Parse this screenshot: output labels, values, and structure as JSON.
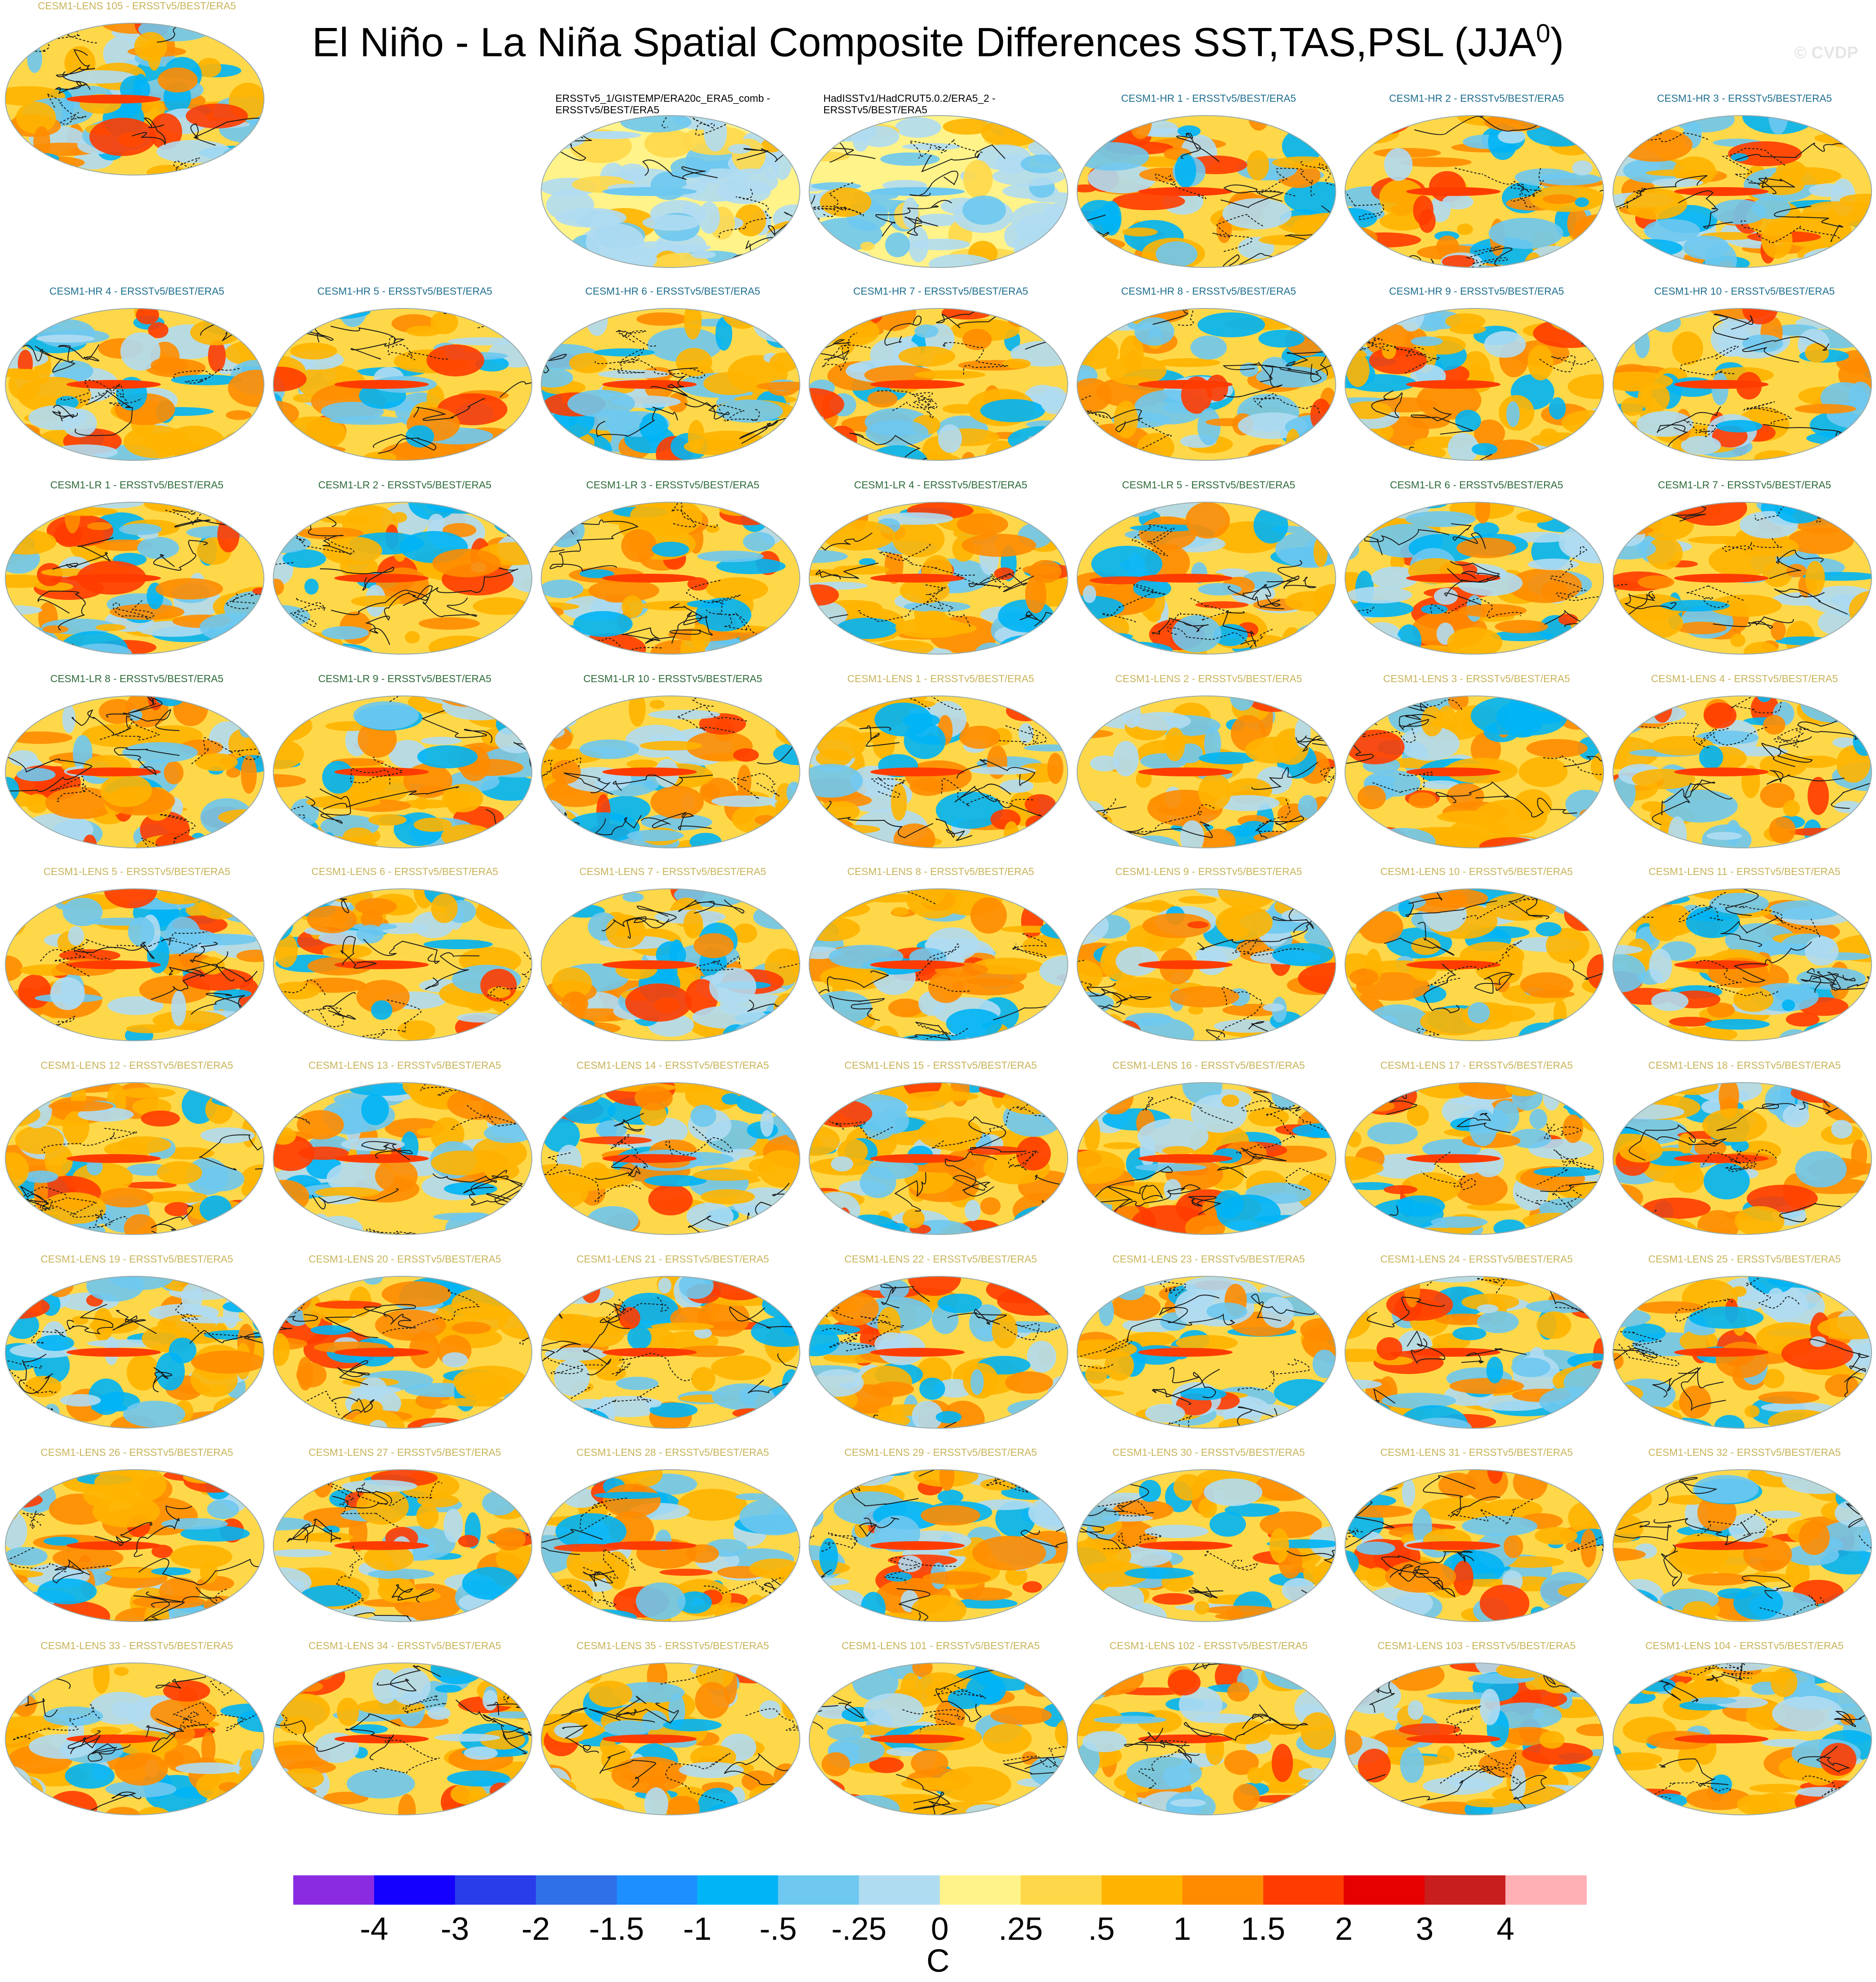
{
  "title": "El Niño - La Niña Spatial Composite Differences SST,TAS,PSL (JJA",
  "title_superscript": "0",
  "title_close": ")",
  "watermark": "© CVDP",
  "panels": [
    {
      "label": "ERSSTv5_1/GISTEMP/ERA20c_ERA5_comb - ERSSTv5/BEST/ERA5",
      "group": "obs"
    },
    {
      "label": "HadISSTv1/HadCRUT5.0.2/ERA5_2 - ERSSTv5/BEST/ERA5",
      "group": "obs"
    },
    {
      "label": "CESM1-HR 1 - ERSSTv5/BEST/ERA5",
      "group": "hr"
    },
    {
      "label": "CESM1-HR 2 - ERSSTv5/BEST/ERA5",
      "group": "hr"
    },
    {
      "label": "CESM1-HR 3 - ERSSTv5/BEST/ERA5",
      "group": "hr"
    },
    {
      "label": "CESM1-HR 4 - ERSSTv5/BEST/ERA5",
      "group": "hr"
    },
    {
      "label": "CESM1-HR 5 - ERSSTv5/BEST/ERA5",
      "group": "hr"
    },
    {
      "label": "CESM1-HR 6 - ERSSTv5/BEST/ERA5",
      "group": "hr"
    },
    {
      "label": "CESM1-HR 7 - ERSSTv5/BEST/ERA5",
      "group": "hr"
    },
    {
      "label": "CESM1-HR 8 - ERSSTv5/BEST/ERA5",
      "group": "hr"
    },
    {
      "label": "CESM1-HR 9 - ERSSTv5/BEST/ERA5",
      "group": "hr"
    },
    {
      "label": "CESM1-HR 10 - ERSSTv5/BEST/ERA5",
      "group": "hr"
    },
    {
      "label": "CESM1-LR 1 - ERSSTv5/BEST/ERA5",
      "group": "lr"
    },
    {
      "label": "CESM1-LR 2 - ERSSTv5/BEST/ERA5",
      "group": "lr"
    },
    {
      "label": "CESM1-LR 3 - ERSSTv5/BEST/ERA5",
      "group": "lr"
    },
    {
      "label": "CESM1-LR 4 - ERSSTv5/BEST/ERA5",
      "group": "lr"
    },
    {
      "label": "CESM1-LR 5 - ERSSTv5/BEST/ERA5",
      "group": "lr"
    },
    {
      "label": "CESM1-LR 6 - ERSSTv5/BEST/ERA5",
      "group": "lr"
    },
    {
      "label": "CESM1-LR 7 - ERSSTv5/BEST/ERA5",
      "group": "lr"
    },
    {
      "label": "CESM1-LR 8 - ERSSTv5/BEST/ERA5",
      "group": "lr"
    },
    {
      "label": "CESM1-LR 9 - ERSSTv5/BEST/ERA5",
      "group": "lr"
    },
    {
      "label": "CESM1-LR 10 - ERSSTv5/BEST/ERA5",
      "group": "lr"
    },
    {
      "label": "CESM1-LENS 1 - ERSSTv5/BEST/ERA5",
      "group": "lens"
    },
    {
      "label": "CESM1-LENS 2 - ERSSTv5/BEST/ERA5",
      "group": "lens"
    },
    {
      "label": "CESM1-LENS 3 - ERSSTv5/BEST/ERA5",
      "group": "lens"
    },
    {
      "label": "CESM1-LENS 4 - ERSSTv5/BEST/ERA5",
      "group": "lens"
    },
    {
      "label": "CESM1-LENS 5 - ERSSTv5/BEST/ERA5",
      "group": "lens"
    },
    {
      "label": "CESM1-LENS 6 - ERSSTv5/BEST/ERA5",
      "group": "lens"
    },
    {
      "label": "CESM1-LENS 7 - ERSSTv5/BEST/ERA5",
      "group": "lens"
    },
    {
      "label": "CESM1-LENS 8 - ERSSTv5/BEST/ERA5",
      "group": "lens"
    },
    {
      "label": "CESM1-LENS 9 - ERSSTv5/BEST/ERA5",
      "group": "lens"
    },
    {
      "label": "CESM1-LENS 10 - ERSSTv5/BEST/ERA5",
      "group": "lens"
    },
    {
      "label": "CESM1-LENS 11 - ERSSTv5/BEST/ERA5",
      "group": "lens"
    },
    {
      "label": "CESM1-LENS 12 - ERSSTv5/BEST/ERA5",
      "group": "lens"
    },
    {
      "label": "CESM1-LENS 13 - ERSSTv5/BEST/ERA5",
      "group": "lens"
    },
    {
      "label": "CESM1-LENS 14 - ERSSTv5/BEST/ERA5",
      "group": "lens"
    },
    {
      "label": "CESM1-LENS 15 - ERSSTv5/BEST/ERA5",
      "group": "lens"
    },
    {
      "label": "CESM1-LENS 16 - ERSSTv5/BEST/ERA5",
      "group": "lens"
    },
    {
      "label": "CESM1-LENS 17 - ERSSTv5/BEST/ERA5",
      "group": "lens"
    },
    {
      "label": "CESM1-LENS 18 - ERSSTv5/BEST/ERA5",
      "group": "lens"
    },
    {
      "label": "CESM1-LENS 19 - ERSSTv5/BEST/ERA5",
      "group": "lens"
    },
    {
      "label": "CESM1-LENS 20 - ERSSTv5/BEST/ERA5",
      "group": "lens"
    },
    {
      "label": "CESM1-LENS 21 - ERSSTv5/BEST/ERA5",
      "group": "lens"
    },
    {
      "label": "CESM1-LENS 22 - ERSSTv5/BEST/ERA5",
      "group": "lens"
    },
    {
      "label": "CESM1-LENS 23 - ERSSTv5/BEST/ERA5",
      "group": "lens"
    },
    {
      "label": "CESM1-LENS 24 - ERSSTv5/BEST/ERA5",
      "group": "lens"
    },
    {
      "label": "CESM1-LENS 25 - ERSSTv5/BEST/ERA5",
      "group": "lens"
    },
    {
      "label": "CESM1-LENS 26 - ERSSTv5/BEST/ERA5",
      "group": "lens"
    },
    {
      "label": "CESM1-LENS 27 - ERSSTv5/BEST/ERA5",
      "group": "lens"
    },
    {
      "label": "CESM1-LENS 28 - ERSSTv5/BEST/ERA5",
      "group": "lens"
    },
    {
      "label": "CESM1-LENS 29 - ERSSTv5/BEST/ERA5",
      "group": "lens"
    },
    {
      "label": "CESM1-LENS 30 - ERSSTv5/BEST/ERA5",
      "group": "lens"
    },
    {
      "label": "CESM1-LENS 31 - ERSSTv5/BEST/ERA5",
      "group": "lens"
    },
    {
      "label": "CESM1-LENS 32 - ERSSTv5/BEST/ERA5",
      "group": "lens"
    },
    {
      "label": "CESM1-LENS 33 - ERSSTv5/BEST/ERA5",
      "group": "lens"
    },
    {
      "label": "CESM1-LENS 34 - ERSSTv5/BEST/ERA5",
      "group": "lens"
    },
    {
      "label": "CESM1-LENS 35 - ERSSTv5/BEST/ERA5",
      "group": "lens"
    },
    {
      "label": "CESM1-LENS 101 - ERSSTv5/BEST/ERA5",
      "group": "lens"
    },
    {
      "label": "CESM1-LENS 102 - ERSSTv5/BEST/ERA5",
      "group": "lens"
    },
    {
      "label": "CESM1-LENS 103 - ERSSTv5/BEST/ERA5",
      "group": "lens"
    },
    {
      "label": "CESM1-LENS 104 - ERSSTv5/BEST/ERA5",
      "group": "lens"
    },
    {
      "label": "CESM1-LENS 105 - ERSSTv5/BEST/ERA5",
      "group": "lens"
    }
  ],
  "group_colors": {
    "obs": "#000000",
    "hr": "#1f6f8f",
    "lr": "#2e6b3a",
    "lens": "#c8b45a"
  },
  "colorbar": {
    "colors": [
      "#8a2be2",
      "#1400ff",
      "#2a3dea",
      "#2f6fe8",
      "#1e8fff",
      "#00b4f5",
      "#6ec8f0",
      "#b0dcf2",
      "#fff38a",
      "#ffd84a",
      "#ffb400",
      "#ff8c00",
      "#ff3c00",
      "#e60000",
      "#c81e1e",
      "#ffb0b4"
    ],
    "tick_labels": [
      "-4",
      "-3",
      "-2",
      "-1.5",
      "-1",
      "-.5",
      "-.25",
      "0",
      ".25",
      ".5",
      "1",
      "1.5",
      "2",
      "3",
      "4"
    ],
    "units": "C"
  }
}
